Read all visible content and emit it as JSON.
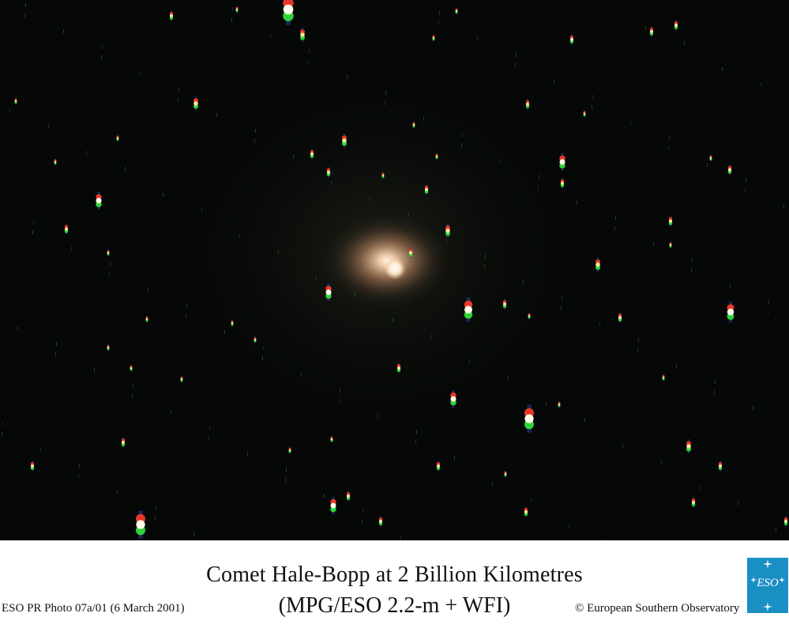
{
  "image": {
    "subject": "Comet Hale-Bopp",
    "background_color": "#050806",
    "coma_color": "#f2c9a0",
    "nucleus_color": "#fffaf0"
  },
  "caption": {
    "title": "Comet Hale-Bopp at 2 Billion Kilometres",
    "subtitle": "(MPG/ESO 2.2-m + WFI)",
    "photo_id": "ESO PR Photo 07a/01 (6 March 2001)",
    "copyright": "© European Southern Observatory"
  },
  "logo": {
    "text": "ESO",
    "color": "#1a8fc4"
  }
}
